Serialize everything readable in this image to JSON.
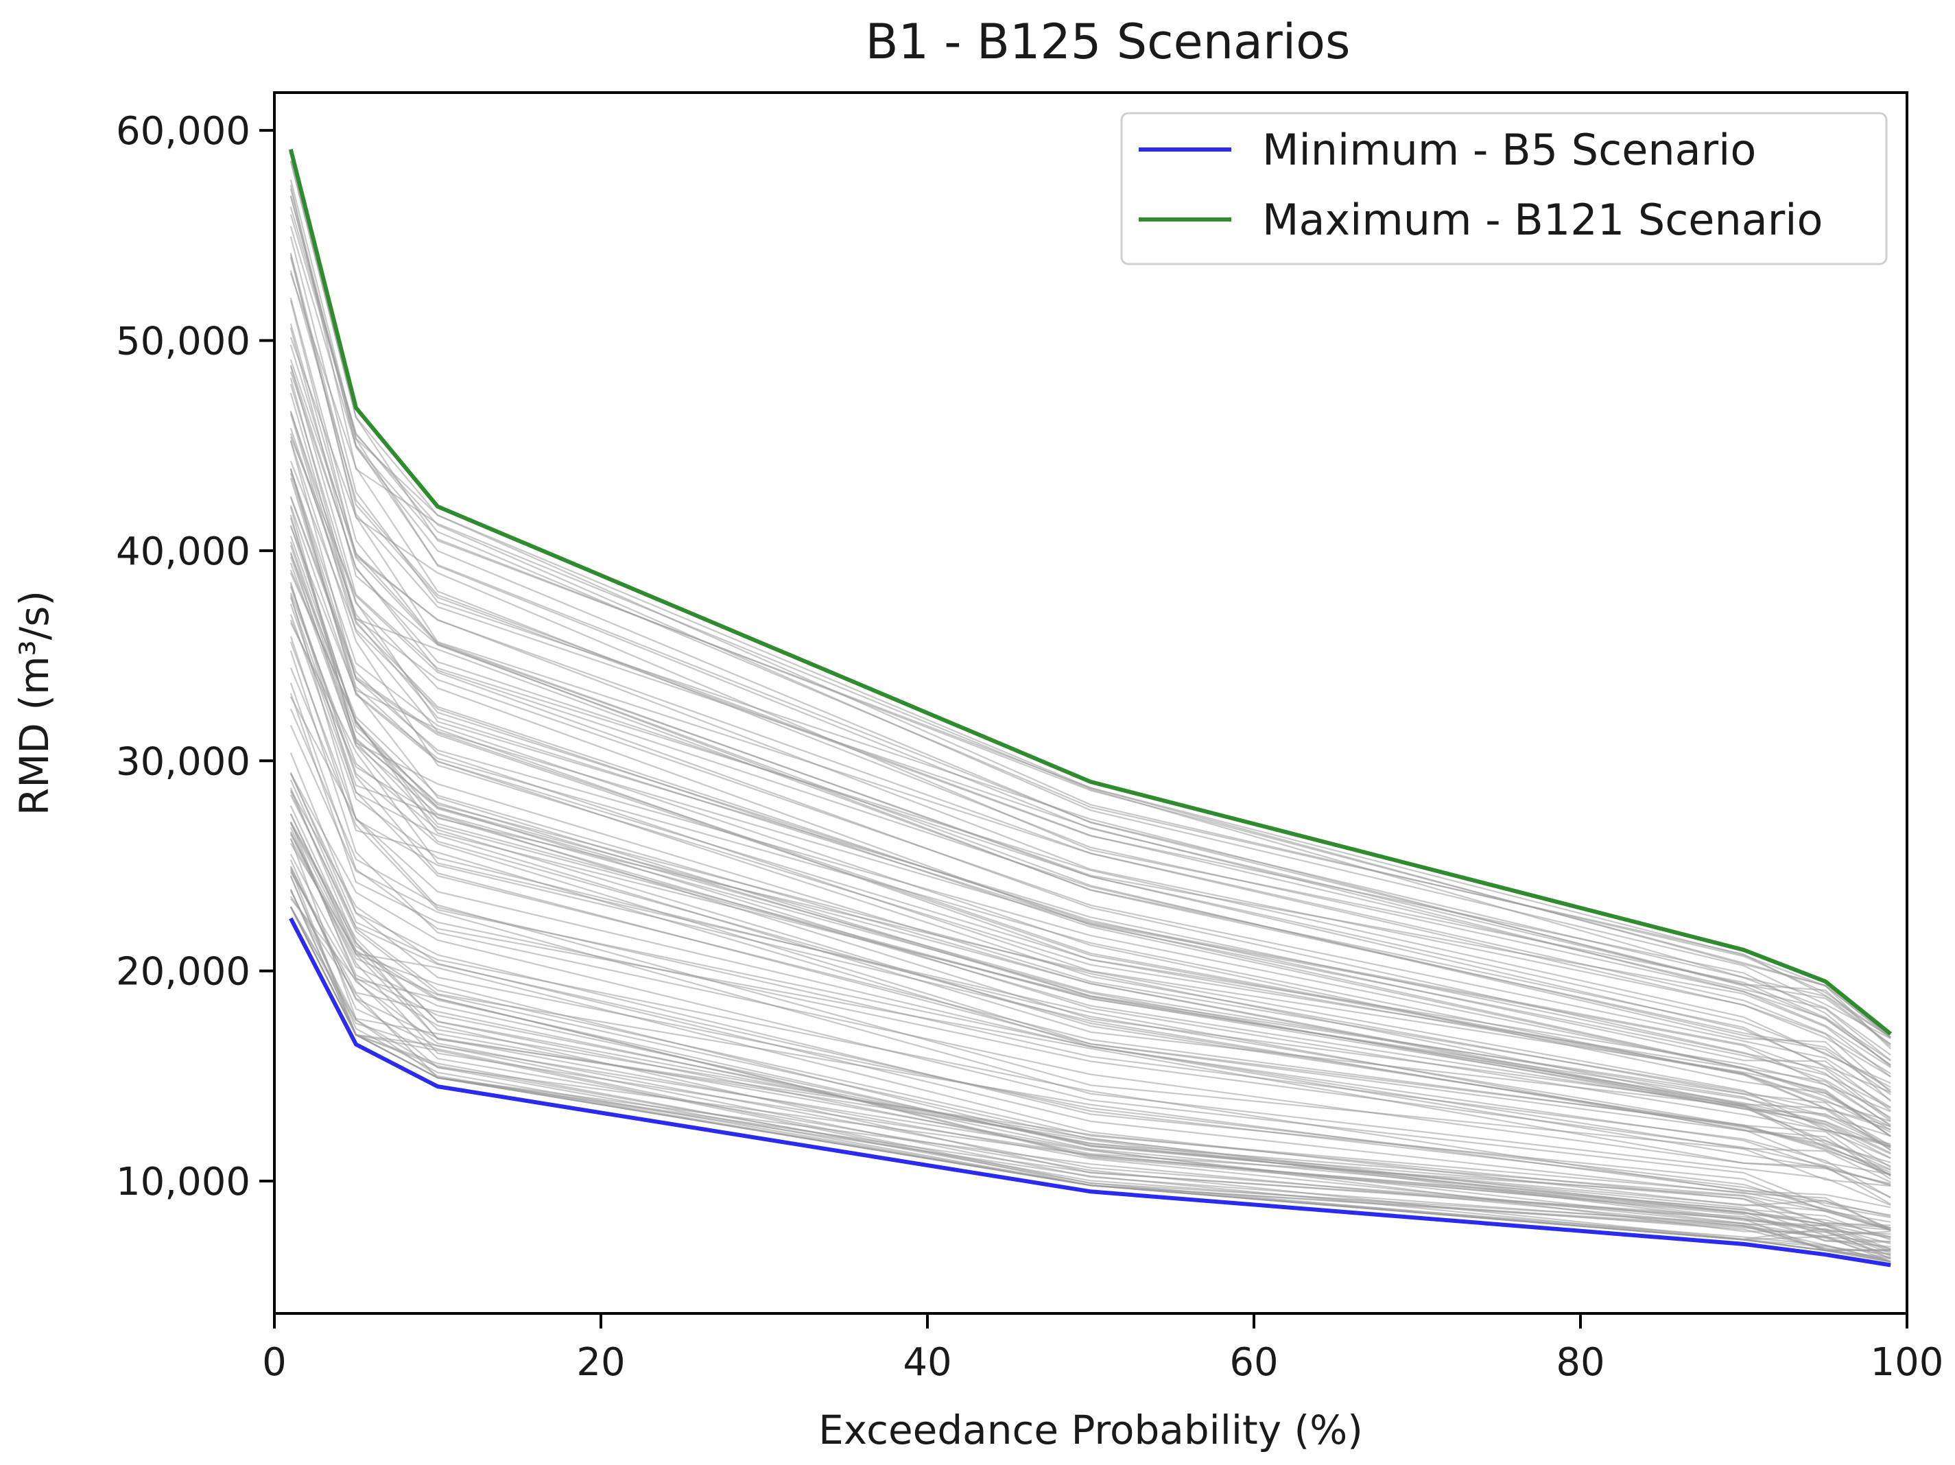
{
  "chart_data": {
    "type": "line",
    "title": "B1 - B125 Scenarios",
    "xlabel": "Exceedance Probability (%)",
    "ylabel": "RMD (m³/s)",
    "xlim": [
      0,
      100
    ],
    "ylim": [
      3700,
      61800
    ],
    "x": [
      1,
      5,
      10,
      50,
      90,
      95,
      99
    ],
    "x_ticks": [
      0,
      20,
      40,
      60,
      80,
      100
    ],
    "x_tick_labels": [
      "0",
      "20",
      "40",
      "60",
      "80",
      "100"
    ],
    "y_ticks": [
      10000,
      20000,
      30000,
      40000,
      50000,
      60000
    ],
    "y_tick_labels": [
      "10,000",
      "20,000",
      "30,000",
      "40,000",
      "50,000",
      "60,000"
    ],
    "grid": false,
    "legend_position": "top-right",
    "series": [
      {
        "name": "Minimum - B5 Scenario",
        "color": "#2a2af0",
        "values": [
          22500,
          16500,
          14500,
          9500,
          7000,
          6500,
          6000
        ]
      },
      {
        "name": "Maximum - B121 Scenario",
        "color": "#2e8b2e",
        "values": [
          59100,
          46800,
          42100,
          29000,
          21000,
          19500,
          17000
        ]
      }
    ],
    "background_series": {
      "count": 123,
      "color": "#9a9a9a",
      "description_range": "scenario curves between minimum and maximum"
    }
  }
}
